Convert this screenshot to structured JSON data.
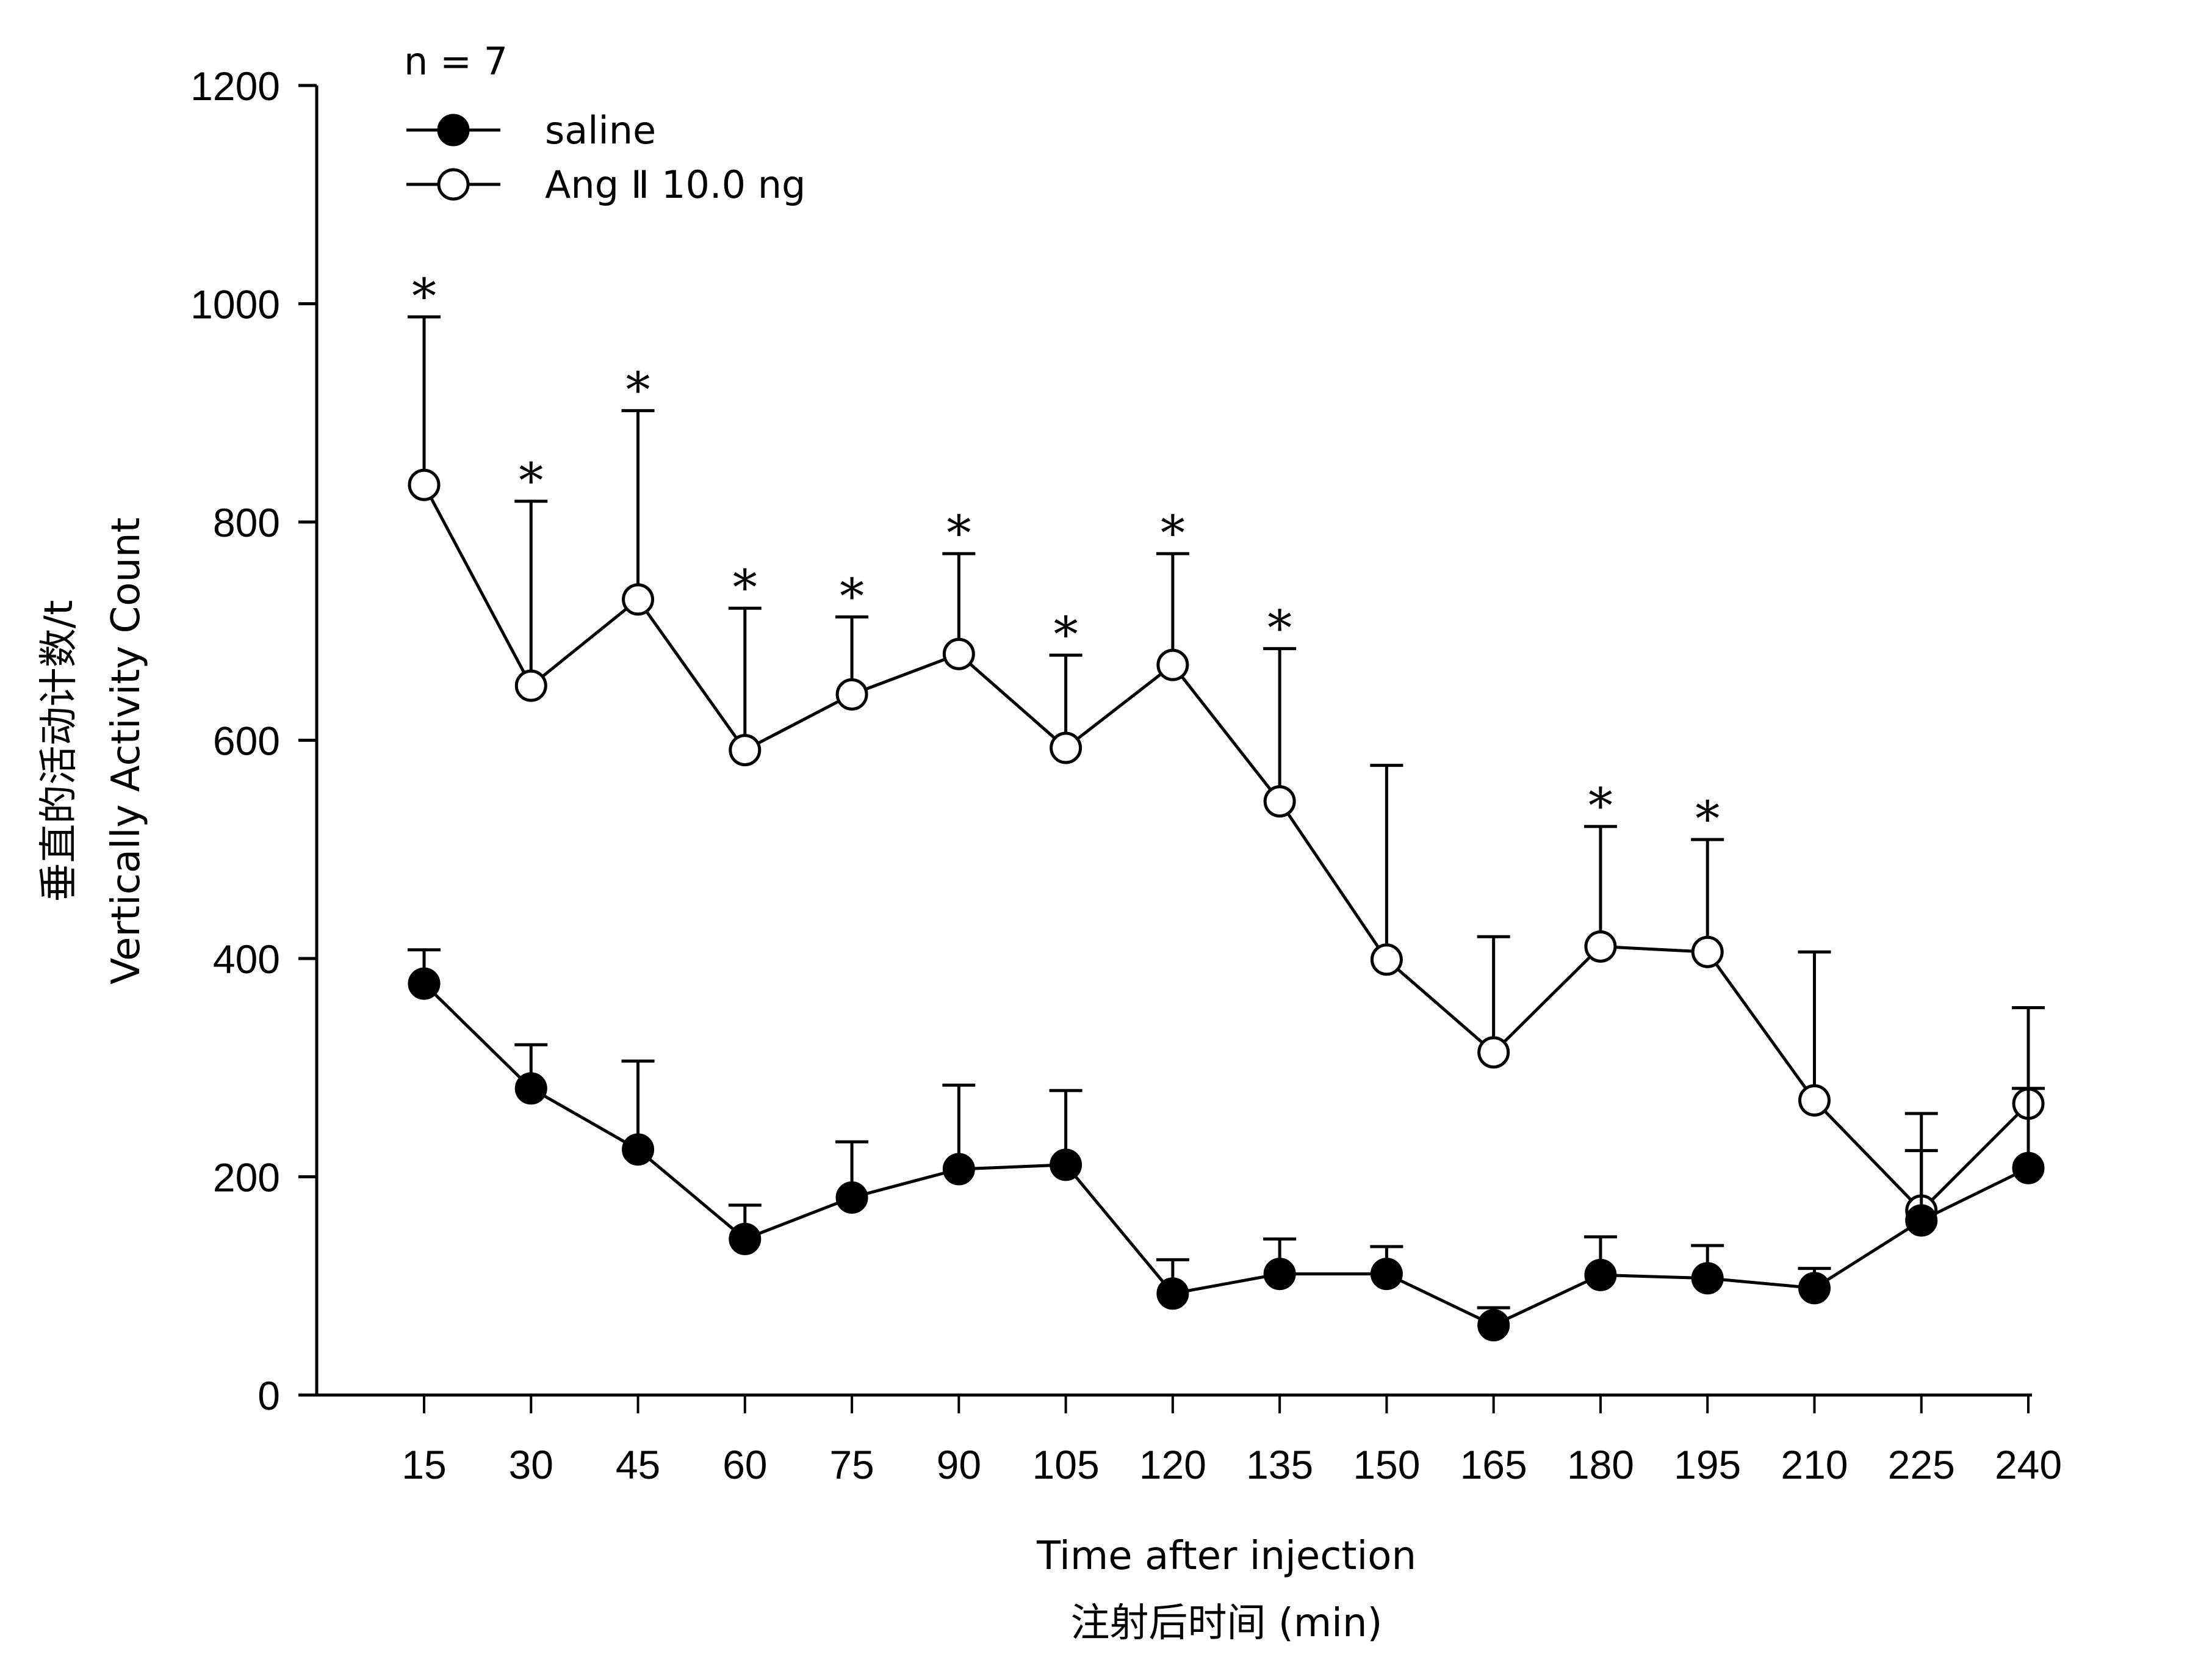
{
  "chart_data": {
    "type": "line",
    "title": "",
    "annotation": "n = 7",
    "xlabel": "Time after injection",
    "xlabel_cn": "注射后时间 (min)",
    "ylabel": "Vertically Activity Count",
    "ylabel_cn": "垂直的活动计数/t",
    "ylim": [
      0,
      1200
    ],
    "yticks": [
      0,
      200,
      400,
      600,
      800,
      1000,
      1200
    ],
    "x": [
      15,
      30,
      45,
      60,
      75,
      90,
      105,
      120,
      135,
      150,
      165,
      180,
      195,
      210,
      225,
      240
    ],
    "grid": false,
    "legend_position": "top-left",
    "series": [
      {
        "name": "saline",
        "marker": "filled-circle",
        "values": [
          377,
          281,
          225,
          143,
          181,
          207,
          211,
          93,
          111,
          111,
          64,
          110,
          107,
          98,
          160,
          208
        ],
        "error_upper": [
          408,
          321,
          306,
          174,
          232,
          284,
          279,
          124,
          143,
          136,
          80,
          145,
          137,
          116,
          224,
          281
        ],
        "significance": [
          false,
          false,
          false,
          false,
          false,
          false,
          false,
          false,
          false,
          false,
          false,
          false,
          false,
          false,
          false,
          false
        ]
      },
      {
        "name": "Ang Ⅱ 10.0 ng",
        "marker": "open-circle",
        "values": [
          834,
          650,
          729,
          591,
          642,
          679,
          593,
          669,
          544,
          399,
          314,
          411,
          406,
          270,
          169,
          267
        ],
        "error_upper": [
          988,
          819,
          902,
          721,
          713,
          771,
          678,
          771,
          684,
          577,
          420,
          521,
          509,
          406,
          258,
          355
        ],
        "significance": [
          true,
          true,
          true,
          true,
          true,
          true,
          true,
          true,
          true,
          false,
          false,
          true,
          true,
          false,
          false,
          false
        ]
      }
    ],
    "significance_marker": "*"
  }
}
